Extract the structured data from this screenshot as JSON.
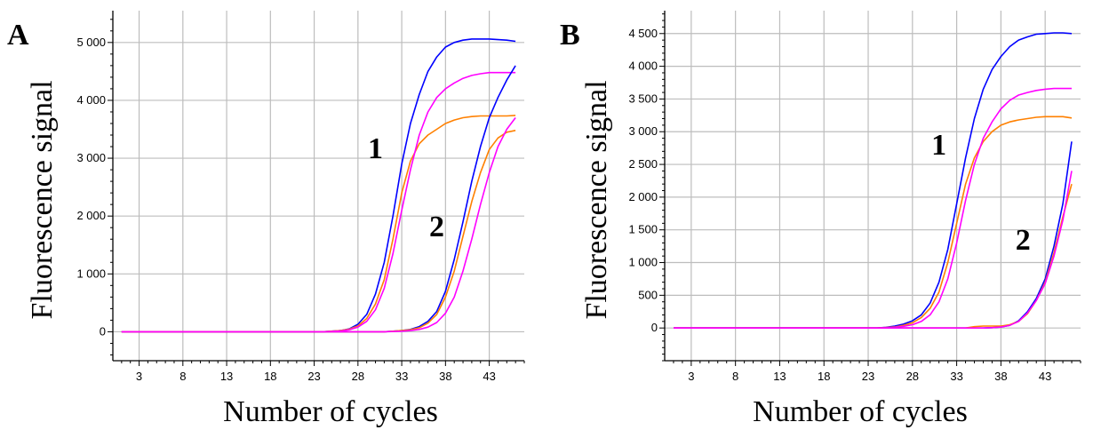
{
  "chart_data": [
    {
      "type": "line",
      "panel": "A",
      "xlabel": "Number of cycles",
      "ylabel": "Fluorescence signal",
      "xlim": [
        0,
        47
      ],
      "ylim": [
        -500,
        5550
      ],
      "xticks": [
        3,
        8,
        13,
        18,
        23,
        28,
        33,
        38,
        43
      ],
      "yticks": [
        0,
        1000,
        2000,
        3000,
        4000,
        5000
      ],
      "ytick_labels": [
        "0",
        "1 000",
        "2 000",
        "3 000",
        "4 000",
        "5 000"
      ],
      "grid": true,
      "annotations": [
        {
          "text": "1",
          "x": 30,
          "y": 3000
        },
        {
          "text": "2",
          "x": 37,
          "y": 1650
        }
      ],
      "series": [
        {
          "color": "#0000ff",
          "points": [
            [
              1,
              0
            ],
            [
              24,
              0
            ],
            [
              26,
              20
            ],
            [
              27,
              50
            ],
            [
              28,
              130
            ],
            [
              29,
              300
            ],
            [
              30,
              650
            ],
            [
              31,
              1200
            ],
            [
              32,
              2000
            ],
            [
              33,
              2900
            ],
            [
              34,
              3600
            ],
            [
              35,
              4100
            ],
            [
              36,
              4500
            ],
            [
              37,
              4750
            ],
            [
              38,
              4920
            ],
            [
              39,
              5000
            ],
            [
              40,
              5040
            ],
            [
              41,
              5060
            ],
            [
              42,
              5060
            ],
            [
              43,
              5060
            ],
            [
              44,
              5050
            ],
            [
              45,
              5040
            ],
            [
              46,
              5020
            ]
          ]
        },
        {
          "color": "#ff8000",
          "points": [
            [
              1,
              0
            ],
            [
              24,
              0
            ],
            [
              26,
              20
            ],
            [
              27,
              45
            ],
            [
              28,
              100
            ],
            [
              29,
              230
            ],
            [
              30,
              480
            ],
            [
              31,
              900
            ],
            [
              32,
              1600
            ],
            [
              33,
              2400
            ],
            [
              34,
              2950
            ],
            [
              35,
              3250
            ],
            [
              36,
              3400
            ],
            [
              37,
              3500
            ],
            [
              38,
              3600
            ],
            [
              39,
              3660
            ],
            [
              40,
              3700
            ],
            [
              41,
              3720
            ],
            [
              42,
              3730
            ],
            [
              43,
              3730
            ],
            [
              44,
              3730
            ],
            [
              45,
              3730
            ],
            [
              46,
              3740
            ]
          ]
        },
        {
          "color": "#ff00ff",
          "points": [
            [
              1,
              0
            ],
            [
              24,
              0
            ],
            [
              26,
              15
            ],
            [
              27,
              35
            ],
            [
              28,
              80
            ],
            [
              29,
              180
            ],
            [
              30,
              380
            ],
            [
              31,
              750
            ],
            [
              32,
              1350
            ],
            [
              33,
              2100
            ],
            [
              34,
              2800
            ],
            [
              35,
              3400
            ],
            [
              36,
              3800
            ],
            [
              37,
              4050
            ],
            [
              38,
              4200
            ],
            [
              39,
              4300
            ],
            [
              40,
              4380
            ],
            [
              41,
              4430
            ],
            [
              42,
              4460
            ],
            [
              43,
              4480
            ],
            [
              44,
              4480
            ],
            [
              45,
              4480
            ],
            [
              46,
              4480
            ]
          ]
        },
        {
          "color": "#0000ff",
          "points": [
            [
              1,
              0
            ],
            [
              31,
              0
            ],
            [
              32,
              10
            ],
            [
              33,
              20
            ],
            [
              34,
              40
            ],
            [
              35,
              90
            ],
            [
              36,
              180
            ],
            [
              37,
              350
            ],
            [
              38,
              700
            ],
            [
              39,
              1250
            ],
            [
              40,
              1900
            ],
            [
              41,
              2600
            ],
            [
              42,
              3200
            ],
            [
              43,
              3700
            ],
            [
              44,
              4050
            ],
            [
              45,
              4350
            ],
            [
              46,
              4600
            ]
          ]
        },
        {
          "color": "#ff8000",
          "points": [
            [
              1,
              0
            ],
            [
              31,
              0
            ],
            [
              32,
              10
            ],
            [
              33,
              20
            ],
            [
              34,
              35
            ],
            [
              35,
              70
            ],
            [
              36,
              150
            ],
            [
              37,
              300
            ],
            [
              38,
              600
            ],
            [
              39,
              1050
            ],
            [
              40,
              1650
            ],
            [
              41,
              2250
            ],
            [
              42,
              2750
            ],
            [
              43,
              3150
            ],
            [
              44,
              3350
            ],
            [
              45,
              3450
            ],
            [
              46,
              3480
            ]
          ]
        },
        {
          "color": "#ff00ff",
          "points": [
            [
              1,
              0
            ],
            [
              31,
              0
            ],
            [
              33,
              10
            ],
            [
              34,
              20
            ],
            [
              35,
              40
            ],
            [
              36,
              80
            ],
            [
              37,
              160
            ],
            [
              38,
              320
            ],
            [
              39,
              600
            ],
            [
              40,
              1050
            ],
            [
              41,
              1600
            ],
            [
              42,
              2200
            ],
            [
              43,
              2750
            ],
            [
              44,
              3200
            ],
            [
              45,
              3500
            ],
            [
              46,
              3700
            ]
          ]
        }
      ]
    },
    {
      "type": "line",
      "panel": "B",
      "xlabel": "Number of cycles",
      "ylabel": "Fluorescence signal",
      "xlim": [
        0,
        47
      ],
      "ylim": [
        -500,
        4850
      ],
      "xticks": [
        3,
        8,
        13,
        18,
        23,
        28,
        33,
        38,
        43
      ],
      "yticks": [
        0,
        500,
        1000,
        1500,
        2000,
        2500,
        3000,
        3500,
        4000,
        4500
      ],
      "ytick_labels": [
        "0",
        "500",
        "1 000",
        "1 500",
        "2 000",
        "2 500",
        "3 000",
        "3 500",
        "4 000",
        "4 500"
      ],
      "grid": true,
      "annotations": [
        {
          "text": "1",
          "x": 31,
          "y": 2650
        },
        {
          "text": "2",
          "x": 40.5,
          "y": 1200
        }
      ],
      "series": [
        {
          "color": "#0000ff",
          "points": [
            [
              1,
              0
            ],
            [
              24,
              0
            ],
            [
              25,
              10
            ],
            [
              26,
              30
            ],
            [
              27,
              60
            ],
            [
              28,
              110
            ],
            [
              29,
              200
            ],
            [
              30,
              380
            ],
            [
              31,
              700
            ],
            [
              32,
              1200
            ],
            [
              33,
              1900
            ],
            [
              34,
              2600
            ],
            [
              35,
              3200
            ],
            [
              36,
              3650
            ],
            [
              37,
              3950
            ],
            [
              38,
              4150
            ],
            [
              39,
              4300
            ],
            [
              40,
              4400
            ],
            [
              41,
              4450
            ],
            [
              42,
              4490
            ],
            [
              43,
              4500
            ],
            [
              44,
              4510
            ],
            [
              45,
              4510
            ],
            [
              46,
              4500
            ]
          ]
        },
        {
          "color": "#ff8000",
          "points": [
            [
              1,
              0
            ],
            [
              24,
              0
            ],
            [
              26,
              15
            ],
            [
              27,
              40
            ],
            [
              28,
              80
            ],
            [
              29,
              160
            ],
            [
              30,
              300
            ],
            [
              31,
              550
            ],
            [
              32,
              1000
            ],
            [
              33,
              1600
            ],
            [
              34,
              2200
            ],
            [
              35,
              2600
            ],
            [
              36,
              2850
            ],
            [
              37,
              3000
            ],
            [
              38,
              3100
            ],
            [
              39,
              3150
            ],
            [
              40,
              3180
            ],
            [
              41,
              3200
            ],
            [
              42,
              3220
            ],
            [
              43,
              3230
            ],
            [
              44,
              3230
            ],
            [
              45,
              3230
            ],
            [
              46,
              3210
            ]
          ]
        },
        {
          "color": "#ff00ff",
          "points": [
            [
              1,
              0
            ],
            [
              24,
              0
            ],
            [
              26,
              10
            ],
            [
              27,
              25
            ],
            [
              28,
              50
            ],
            [
              29,
              100
            ],
            [
              30,
              200
            ],
            [
              31,
              400
            ],
            [
              32,
              750
            ],
            [
              33,
              1300
            ],
            [
              34,
              1950
            ],
            [
              35,
              2500
            ],
            [
              36,
              2900
            ],
            [
              37,
              3150
            ],
            [
              38,
              3350
            ],
            [
              39,
              3480
            ],
            [
              40,
              3560
            ],
            [
              41,
              3600
            ],
            [
              42,
              3630
            ],
            [
              43,
              3650
            ],
            [
              44,
              3660
            ],
            [
              45,
              3660
            ],
            [
              46,
              3660
            ]
          ]
        },
        {
          "color": "#0000ff",
          "points": [
            [
              1,
              0
            ],
            [
              36,
              0
            ],
            [
              37,
              5
            ],
            [
              38,
              15
            ],
            [
              39,
              40
            ],
            [
              40,
              110
            ],
            [
              41,
              250
            ],
            [
              42,
              450
            ],
            [
              43,
              750
            ],
            [
              44,
              1250
            ],
            [
              45,
              1900
            ],
            [
              46,
              2850
            ]
          ]
        },
        {
          "color": "#ff8000",
          "points": [
            [
              1,
              0
            ],
            [
              34,
              0
            ],
            [
              35,
              20
            ],
            [
              36,
              30
            ],
            [
              37,
              30
            ],
            [
              38,
              30
            ],
            [
              39,
              50
            ],
            [
              40,
              100
            ],
            [
              41,
              220
            ],
            [
              42,
              420
            ],
            [
              43,
              700
            ],
            [
              44,
              1150
            ],
            [
              45,
              1700
            ],
            [
              46,
              2200
            ]
          ]
        },
        {
          "color": "#ff00ff",
          "points": [
            [
              1,
              0
            ],
            [
              36,
              0
            ],
            [
              37,
              5
            ],
            [
              38,
              15
            ],
            [
              39,
              40
            ],
            [
              40,
              100
            ],
            [
              41,
              230
            ],
            [
              42,
              420
            ],
            [
              43,
              680
            ],
            [
              44,
              1100
            ],
            [
              45,
              1650
            ],
            [
              46,
              2400
            ]
          ]
        }
      ]
    }
  ]
}
